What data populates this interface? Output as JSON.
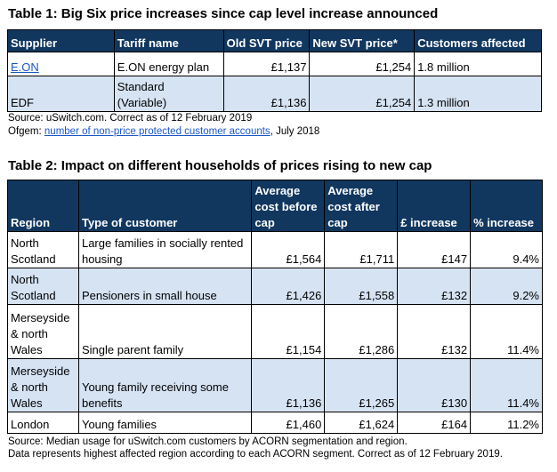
{
  "table1": {
    "title": "Table 1: Big Six price increases since cap level increase announced",
    "headers": [
      "Supplier",
      "Tariff name",
      "Old SVT price",
      "New SVT price*",
      "Customers affected"
    ],
    "rows": [
      {
        "supplier": "E.ON",
        "tariff": "E.ON energy plan",
        "old": "£1,137",
        "new": "£1,254",
        "customers": "1.8 million"
      },
      {
        "supplier": "EDF",
        "tariff_line1": "Standard",
        "tariff_line2": "(Variable)",
        "old": "£1,136",
        "new": "£1,254",
        "customers": "1.3 million"
      }
    ],
    "source": "Source: uSwitch.com. Correct as of 12 February 2019",
    "ofgem_prefix": "Ofgem: ",
    "ofgem_link": "number of non-price protected customer accounts",
    "ofgem_suffix": ", July 2018"
  },
  "table2": {
    "title": "Table 2: Impact on different households of prices rising to new cap",
    "headers": {
      "region": "Region",
      "type": "Type of customer",
      "before_l1": "Average",
      "before_l2": "cost before",
      "before_l3": "cap",
      "after_l1": "Average",
      "after_l2": "cost after",
      "after_l3": "cap",
      "increase": "£ increase",
      "pct": "% increase"
    },
    "rows": [
      {
        "region": [
          "North",
          "Scotland"
        ],
        "type": [
          "Large families in socially rented",
          "housing"
        ],
        "before": "£1,564",
        "after": "£1,711",
        "increase": "£147",
        "pct": "9.4%"
      },
      {
        "region": [
          "North",
          "Scotland"
        ],
        "type": [
          "Pensioners in small house"
        ],
        "before": "£1,426",
        "after": "£1,558",
        "increase": "£132",
        "pct": "9.2%"
      },
      {
        "region": [
          "Merseyside",
          "& north",
          "Wales"
        ],
        "type": [
          "Single parent family"
        ],
        "before": "£1,154",
        "after": "£1,286",
        "increase": "£132",
        "pct": "11.4%"
      },
      {
        "region": [
          "Merseyside",
          "& north",
          "Wales"
        ],
        "type": [
          "Young family receiving some",
          "benefits"
        ],
        "before": "£1,136",
        "after": "£1,265",
        "increase": "£130",
        "pct": "11.4%"
      },
      {
        "region": [
          "London"
        ],
        "type": [
          "Young families"
        ],
        "before": "£1,460",
        "after": "£1,624",
        "increase": "£164",
        "pct": "11.2%"
      }
    ],
    "note1": "Source: Median usage for uSwitch.com customers by ACORN segmentation and region.",
    "note2": "Data represents highest affected region according to each ACORN segment. Correct as of 12 February 2019."
  }
}
